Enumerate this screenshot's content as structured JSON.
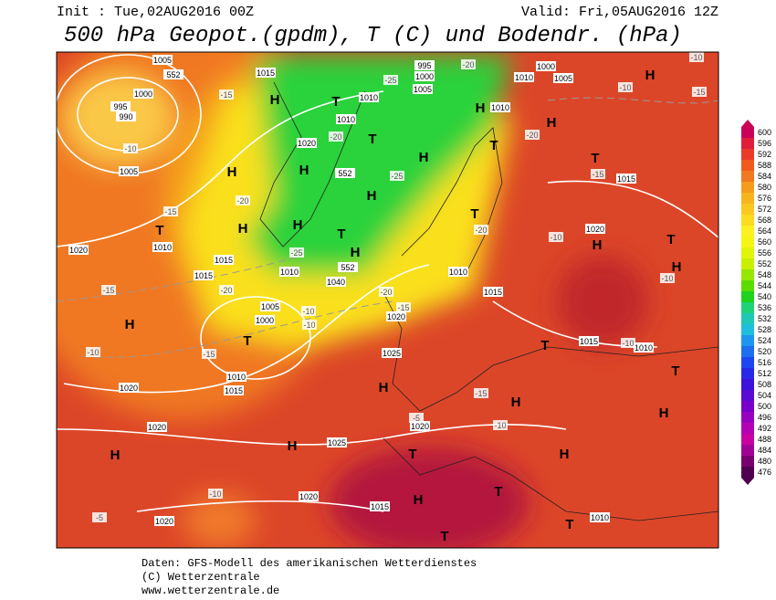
{
  "header": {
    "init": "Init : Tue,02AUG2016 00Z",
    "valid": "Valid: Fri,05AUG2016 12Z",
    "title": "500 hPa Geopot.(gpdm), T (C) und Bodendr. (hPa)"
  },
  "legend": {
    "values": [
      600,
      596,
      592,
      588,
      584,
      580,
      576,
      572,
      568,
      564,
      560,
      556,
      552,
      548,
      544,
      540,
      536,
      532,
      528,
      524,
      520,
      516,
      512,
      508,
      504,
      500,
      496,
      492,
      488,
      484,
      480,
      476
    ],
    "colors": [
      "#c8005a",
      "#e01e3c",
      "#e83c28",
      "#f05a1e",
      "#f07820",
      "#f59b1e",
      "#f8b41e",
      "#fac81e",
      "#fbdc1e",
      "#fcf01e",
      "#f5f514",
      "#e1f50a",
      "#c8f000",
      "#96e600",
      "#5adc00",
      "#1ed21e",
      "#1ed278",
      "#1ec8b4",
      "#1ebedc",
      "#1e96f0",
      "#1e6ef0",
      "#1e46f0",
      "#2828e6",
      "#3c14dc",
      "#5a0ad2",
      "#7800c8",
      "#9600be",
      "#b400b4",
      "#c800a0",
      "#a00096",
      "#78006e",
      "#500050"
    ]
  },
  "map_labels": [
    "1005",
    "552",
    "1000",
    "995",
    "990",
    "-10",
    "1005",
    "-15",
    "1015",
    "H",
    "T",
    "1010",
    "1010",
    "1020",
    "-20",
    "552",
    "H",
    "H",
    "T",
    "H",
    "-25",
    "-20",
    "H",
    "H",
    "T",
    "H",
    "H",
    "-25",
    "1015",
    "1010",
    "552",
    "1040",
    "-20",
    "T",
    "1010",
    "-15",
    "1020",
    "-15",
    "1015",
    "-20",
    "H",
    "1005",
    "1000",
    "T",
    "-10",
    "-10",
    "-15",
    "-10",
    "1010",
    "1015",
    "1020",
    "1020",
    "1025",
    "H",
    "-15",
    "H",
    "1020",
    "-10",
    "1025",
    "H",
    "H",
    "T",
    "T",
    "H",
    "H",
    "1015",
    "1020",
    "-10",
    "1020",
    "T",
    "1010",
    "T",
    "1000",
    "1005",
    "1010",
    "1010",
    "H",
    "H",
    "T",
    "-20",
    "T",
    "H",
    "-10",
    "-15",
    "-15",
    "1015",
    "1020",
    "H",
    "-10",
    "T",
    "H",
    "-10",
    "T",
    "-20",
    "1010",
    "1015",
    "1020",
    "-15",
    "T",
    "1015",
    "-10",
    "1010",
    "T",
    "H",
    "995",
    "1000",
    "1005",
    "-25",
    "-20",
    "-10",
    "-5",
    "-5"
  ],
  "footer": {
    "source": "Daten: GFS-Modell des amerikanischen Wetterdienstes",
    "copyright": "(C) Wetterzentrale",
    "url": "www.wetterzentrale.de"
  }
}
